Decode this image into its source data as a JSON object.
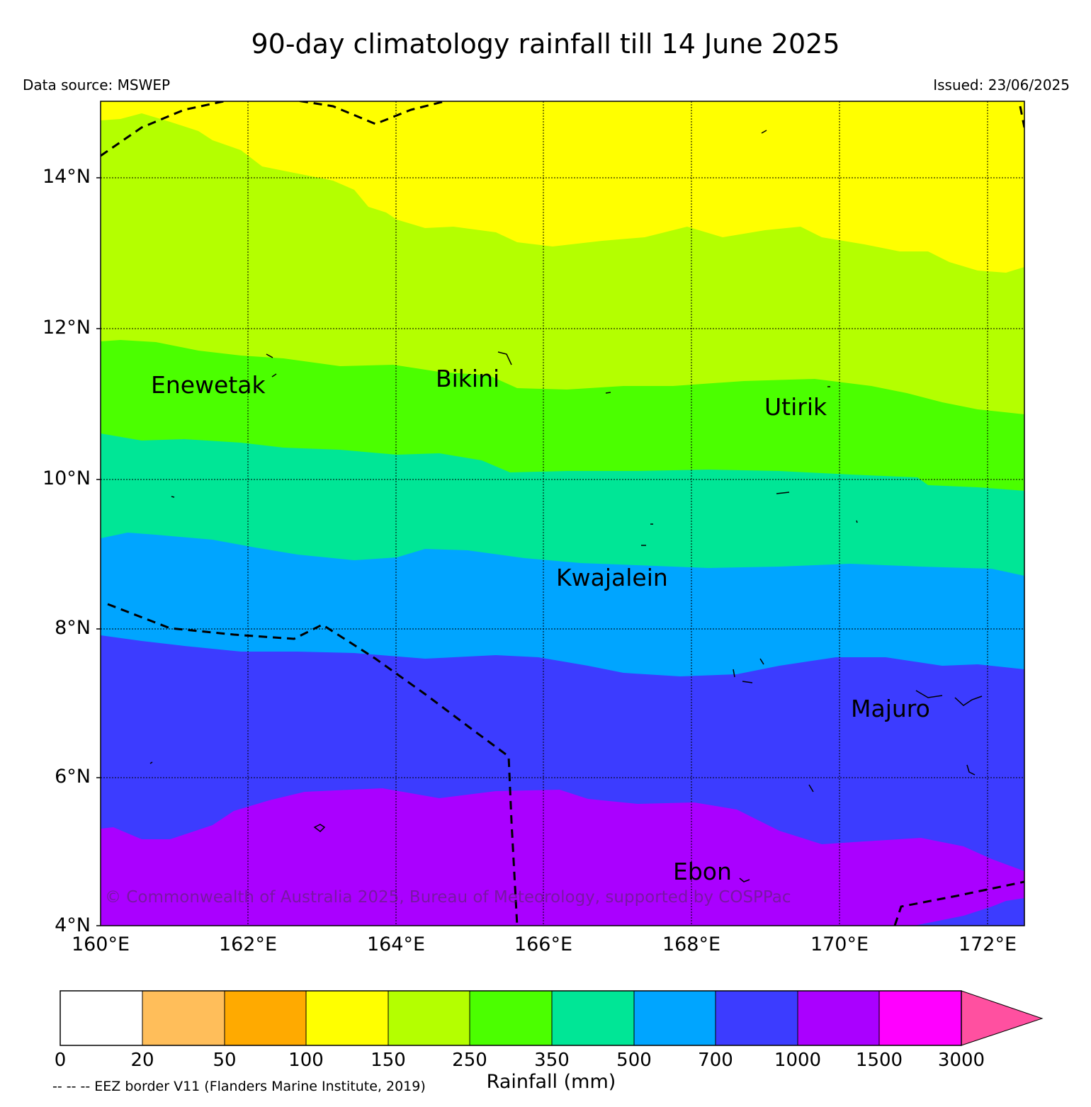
{
  "title": "90-day climatology rainfall till 14 June 2025",
  "data_source": "Data source: MSWEP",
  "issued": "Issued: 23/06/2025",
  "map": {
    "lat_ticks": [
      "4°N",
      "6°N",
      "8°N",
      "10°N",
      "12°N",
      "14°N"
    ],
    "lon_ticks": [
      "160°E",
      "162°E",
      "164°E",
      "166°E",
      "168°E",
      "170°E",
      "172°E"
    ],
    "extent": {
      "lon_min": 160,
      "lon_max": 172.5,
      "lat_min": 4,
      "lat_max": 15
    },
    "grid": true,
    "places": [
      {
        "name": "Enewetak",
        "lon": 162.4,
        "lat": 11.4
      },
      {
        "name": "Bikini",
        "lon": 165.5,
        "lat": 11.6
      },
      {
        "name": "Utirik",
        "lon": 169.8,
        "lat": 11.2
      },
      {
        "name": "Kwajalein",
        "lon": 167.7,
        "lat": 8.7
      },
      {
        "name": "Majuro",
        "lon": 171.3,
        "lat": 7.1
      },
      {
        "name": "Ebon",
        "lon": 168.7,
        "lat": 4.6
      }
    ],
    "rainfall_bands": [
      {
        "range": "1000-1500",
        "color": "#aa00ff"
      },
      {
        "range": "700-1000",
        "color": "#3c3cff"
      },
      {
        "range": "500-700",
        "color": "#00a5ff"
      },
      {
        "range": "350-500",
        "color": "#00e696"
      },
      {
        "range": "250-350",
        "color": "#4bff00"
      },
      {
        "range": "150-250",
        "color": "#b4ff00"
      },
      {
        "range": "100-150",
        "color": "#ffff00"
      }
    ],
    "copyright": "© Commonwealth of Australia 2025, Bureau of Meteorology, supported by COSPPac"
  },
  "colorbar": {
    "title": "Rainfall (mm)",
    "ticks": [
      "0",
      "20",
      "50",
      "100",
      "150",
      "250",
      "350",
      "500",
      "700",
      "1000",
      "1500",
      "3000"
    ],
    "colors": [
      "#ffffff",
      "#ffbe5a",
      "#ffaa00",
      "#ffff00",
      "#b4ff00",
      "#4bff00",
      "#00e696",
      "#00a5ff",
      "#3c3cff",
      "#aa00ff",
      "#ff00ff"
    ],
    "extend_color": "#ff50a0"
  },
  "eez_note": "-- -- -- EEZ border V11 (Flanders Marine Institute, 2019)"
}
